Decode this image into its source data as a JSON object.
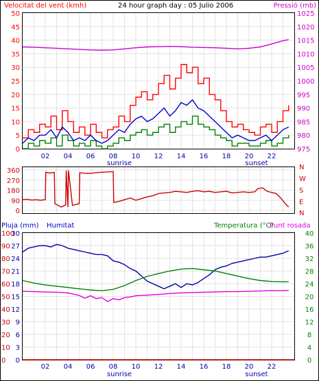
{
  "header": {
    "wind_label": "Velocitat del vent (kmh)",
    "title": "24 hour graph day : 05 Julio 2006",
    "pressure_label": "Pressió (mb)"
  },
  "panel2": {
    "compass": [
      "N",
      "W",
      "S",
      "E",
      "N"
    ]
  },
  "panel3": {
    "rain_label": "Pluja (mm)",
    "humidity_label": "Humitat",
    "temp_label": "Temperatura (°C)",
    "dew_label": "Punt rosada"
  },
  "sunrise_label": "sunrise",
  "sunset_label": "sunset",
  "colors": {
    "wind_gust": "#ff0000",
    "wind_avg": "#0000cc",
    "wind_low": "#008000",
    "pressure": "#cc00cc",
    "direction": "#cc0000",
    "humidity": "#0000aa",
    "temperature": "#008000",
    "dew": "#dd00dd",
    "rain": "#cc0000",
    "grid": "#c8c8c8",
    "frame": "#000000"
  },
  "chart_data": [
    {
      "type": "line",
      "title": "24 hour graph day : 05 Julio 2006",
      "x_ticks": [
        "02",
        "04",
        "06",
        "08",
        "10",
        "12",
        "14",
        "16",
        "18",
        "20",
        "22"
      ],
      "xlim": [
        0,
        24
      ],
      "left_axis": {
        "label": "Velocitat del vent (kmh)",
        "ticks": [
          0,
          5,
          10,
          15,
          20,
          25,
          30,
          35,
          40,
          45,
          50
        ],
        "ylim": [
          0,
          50
        ]
      },
      "right_axis": {
        "label": "Pressió (mb)",
        "ticks": [
          975,
          980,
          985,
          990,
          995,
          1000,
          1005,
          1010,
          1015,
          1020,
          1025
        ],
        "ylim": [
          975,
          1025
        ]
      },
      "series": [
        {
          "name": "Pressió (mb)",
          "axis": "right",
          "x": [
            0,
            1,
            2,
            3,
            4,
            5,
            6,
            7,
            8,
            9,
            10,
            11,
            12,
            13,
            14,
            15,
            16,
            17,
            18,
            19,
            20,
            21,
            22,
            23,
            23.5
          ],
          "y": [
            1012.5,
            1012.4,
            1012.2,
            1012,
            1011.8,
            1011.6,
            1011.4,
            1011.3,
            1011.4,
            1011.8,
            1012.2,
            1012.5,
            1012.6,
            1012.7,
            1012.6,
            1012.4,
            1012.3,
            1012.2,
            1012,
            1011.8,
            1012,
            1012.5,
            1013.6,
            1014.8,
            1015.2
          ]
        },
        {
          "name": "gust",
          "x": [
            0,
            0.5,
            1,
            1.5,
            2,
            2.5,
            3,
            3.5,
            4,
            4.5,
            5,
            5.5,
            6,
            6.5,
            7,
            7.5,
            8,
            8.5,
            9,
            9.5,
            10,
            10.5,
            11,
            11.5,
            12,
            12.5,
            13,
            13.5,
            14,
            14.5,
            15,
            15.5,
            16,
            16.5,
            17,
            17.5,
            18,
            18.5,
            19,
            19.5,
            20,
            20.5,
            21,
            21.5,
            22,
            22.5,
            23,
            23.5
          ],
          "y": [
            4,
            7,
            6,
            9,
            8,
            12,
            7,
            14,
            10,
            6,
            8,
            5,
            9,
            6,
            4,
            7,
            8,
            12,
            10,
            16,
            19,
            21,
            18,
            20,
            24,
            27,
            22,
            26,
            31,
            28,
            30,
            24,
            26,
            20,
            18,
            14,
            10,
            8,
            9,
            7,
            6,
            5,
            8,
            9,
            6,
            10,
            14,
            16
          ]
        },
        {
          "name": "average",
          "x": [
            0,
            0.5,
            1,
            1.5,
            2,
            2.5,
            3,
            3.5,
            4,
            4.5,
            5,
            5.5,
            6,
            6.5,
            7,
            7.5,
            8,
            8.5,
            9,
            9.5,
            10,
            10.5,
            11,
            11.5,
            12,
            12.5,
            13,
            13.5,
            14,
            14.5,
            15,
            15.5,
            16,
            16.5,
            17,
            17.5,
            18,
            18.5,
            19,
            19.5,
            20,
            20.5,
            21,
            21.5,
            22,
            22.5,
            23,
            23.5
          ],
          "y": [
            2,
            4,
            3,
            5,
            5,
            7,
            4,
            8,
            6,
            3,
            4,
            3,
            5,
            3,
            2,
            3,
            5,
            7,
            6,
            9,
            11,
            12,
            10,
            11,
            13,
            15,
            12,
            14,
            17,
            16,
            18,
            15,
            14,
            12,
            10,
            8,
            6,
            4,
            5,
            4,
            3,
            3,
            4,
            5,
            3,
            5,
            7,
            8
          ]
        },
        {
          "name": "low",
          "x": [
            0,
            0.5,
            1,
            1.5,
            2,
            2.5,
            3,
            3.5,
            4,
            4.5,
            5,
            5.5,
            6,
            6.5,
            7,
            7.5,
            8,
            8.5,
            9,
            9.5,
            10,
            10.5,
            11,
            11.5,
            12,
            12.5,
            13,
            13.5,
            14,
            14.5,
            15,
            15.5,
            16,
            16.5,
            17,
            17.5,
            18,
            18.5,
            19,
            19.5,
            20,
            20.5,
            21,
            21.5,
            22,
            22.5,
            23,
            23.5
          ],
          "y": [
            0,
            2,
            1,
            3,
            2,
            4,
            1,
            5,
            3,
            1,
            2,
            1,
            3,
            1,
            0,
            1,
            2,
            4,
            3,
            5,
            6,
            7,
            5,
            6,
            8,
            9,
            6,
            8,
            10,
            9,
            12,
            9,
            8,
            7,
            5,
            4,
            3,
            1,
            2,
            2,
            1,
            1,
            2,
            3,
            1,
            2,
            4,
            5
          ]
        }
      ]
    },
    {
      "type": "line",
      "x_ticks": [
        "02",
        "04",
        "06",
        "08",
        "10",
        "12",
        "14",
        "16",
        "18",
        "20",
        "22"
      ],
      "xlim": [
        0,
        24
      ],
      "left_axis": {
        "ticks": [
          0,
          90,
          180,
          270,
          360
        ],
        "ylim": [
          0,
          360
        ]
      },
      "right_axis": {
        "ticks": [
          "N",
          "E",
          "S",
          "W",
          "N"
        ]
      },
      "series": [
        {
          "name": "direction",
          "x": [
            0,
            0.4,
            0.8,
            1.2,
            1.6,
            2,
            2.05,
            2.4,
            2.8,
            2.85,
            3,
            3.4,
            3.8,
            3.85,
            4,
            4.05,
            4.4,
            4.8,
            5,
            5.05,
            5.5,
            6,
            6.5,
            7,
            7.5,
            8,
            8.05,
            8.5,
            9,
            9.5,
            10,
            10.5,
            11,
            11.5,
            12,
            12.5,
            13,
            13.5,
            14,
            14.5,
            15,
            15.5,
            16,
            16.5,
            17,
            17.5,
            18,
            18.5,
            19,
            19.5,
            20,
            20.5,
            20.8,
            21.2,
            21.6,
            22,
            22.4,
            22.8,
            23.2,
            23.5
          ],
          "y": [
            95,
            98,
            92,
            95,
            90,
            96,
            340,
            332,
            338,
            60,
            52,
            30,
            48,
            355,
            30,
            355,
            45,
            55,
            60,
            335,
            330,
            330,
            335,
            340,
            342,
            345,
            70,
            80,
            95,
            110,
            90,
            105,
            120,
            130,
            150,
            155,
            160,
            170,
            165,
            160,
            170,
            175,
            165,
            170,
            160,
            165,
            170,
            155,
            160,
            165,
            160,
            165,
            195,
            200,
            170,
            160,
            150,
            110,
            60,
            30
          ]
        }
      ]
    },
    {
      "type": "line",
      "x_ticks": [
        "02",
        "04",
        "06",
        "08",
        "10",
        "12",
        "14",
        "16",
        "18",
        "20",
        "22"
      ],
      "xlim": [
        0,
        24
      ],
      "axes": [
        {
          "label": "Pluja (mm)",
          "ticks": [
            0,
            10,
            20,
            30,
            40,
            50,
            60,
            70,
            80,
            90,
            100
          ]
        },
        {
          "label": "Humitat",
          "ticks": [
            0,
            3,
            6,
            9,
            12,
            15,
            18,
            21,
            24,
            27,
            30
          ]
        },
        {
          "label": "Temperatura (°C)",
          "ticks": [
            0,
            4,
            8,
            12,
            16,
            20,
            24,
            28,
            32,
            36,
            40
          ]
        }
      ],
      "series": [
        {
          "name": "Humitat",
          "axis": "Humitat",
          "x": [
            0,
            0.5,
            1,
            1.5,
            2,
            2.5,
            3,
            3.5,
            4,
            4.5,
            5,
            5.5,
            6,
            6.5,
            7,
            7.5,
            8,
            8.5,
            9,
            9.5,
            10,
            10.5,
            11,
            11.5,
            12,
            12.5,
            13,
            13.5,
            14,
            14.5,
            15,
            15.5,
            16,
            16.5,
            17,
            17.5,
            18,
            18.5,
            19,
            19.5,
            20,
            20.5,
            21,
            21.5,
            22,
            22.5,
            23,
            23.5
          ],
          "y": [
            85,
            88,
            89,
            90,
            90,
            89,
            91,
            90,
            88,
            87,
            86,
            85,
            84,
            83,
            83,
            82,
            78,
            77,
            75,
            72,
            70,
            66,
            62,
            60,
            58,
            56,
            58,
            60,
            57,
            60,
            59,
            61,
            64,
            67,
            71,
            73,
            74,
            76,
            77,
            78,
            79,
            80,
            81,
            81,
            82,
            83,
            84,
            86
          ]
        },
        {
          "name": "Temperatura (°C)",
          "axis": "Temperatura (°C)",
          "x": [
            0,
            1,
            2,
            3,
            4,
            5,
            6,
            7,
            8,
            9,
            10,
            11,
            12,
            13,
            14,
            15,
            16,
            17,
            18,
            19,
            20,
            21,
            22,
            23,
            23.5
          ],
          "y": [
            25,
            24.2,
            23.6,
            23.2,
            22.8,
            22.4,
            22,
            21.8,
            22.2,
            23.4,
            25,
            26.3,
            27.2,
            28,
            28.6,
            28.8,
            28.4,
            28,
            27.2,
            26.4,
            25.6,
            25,
            24.7,
            24.6,
            24.6
          ]
        },
        {
          "name": "Punt rosada",
          "axis": "Temperatura (°C)",
          "x": [
            0,
            1,
            2,
            3,
            4,
            5,
            5.5,
            6,
            6.5,
            7,
            7.5,
            8,
            8.5,
            9,
            9.5,
            10,
            11,
            12,
            13,
            14,
            15,
            16,
            17,
            18,
            19,
            20,
            21,
            22,
            23,
            23.5
          ],
          "y": [
            21.6,
            21.5,
            21.4,
            21.3,
            21.1,
            20.3,
            19.4,
            20.2,
            19.3,
            19.6,
            18.4,
            19.3,
            18.9,
            19.6,
            19.8,
            20.2,
            20.4,
            20.6,
            20.9,
            21.1,
            21.2,
            21.3,
            21.4,
            21.5,
            21.5,
            21.6,
            21.7,
            21.8,
            21.8,
            21.9
          ]
        },
        {
          "name": "Pluja (mm)",
          "axis": "Pluja (mm)",
          "x": [
            0,
            24
          ],
          "y": [
            0,
            0
          ]
        }
      ]
    }
  ]
}
